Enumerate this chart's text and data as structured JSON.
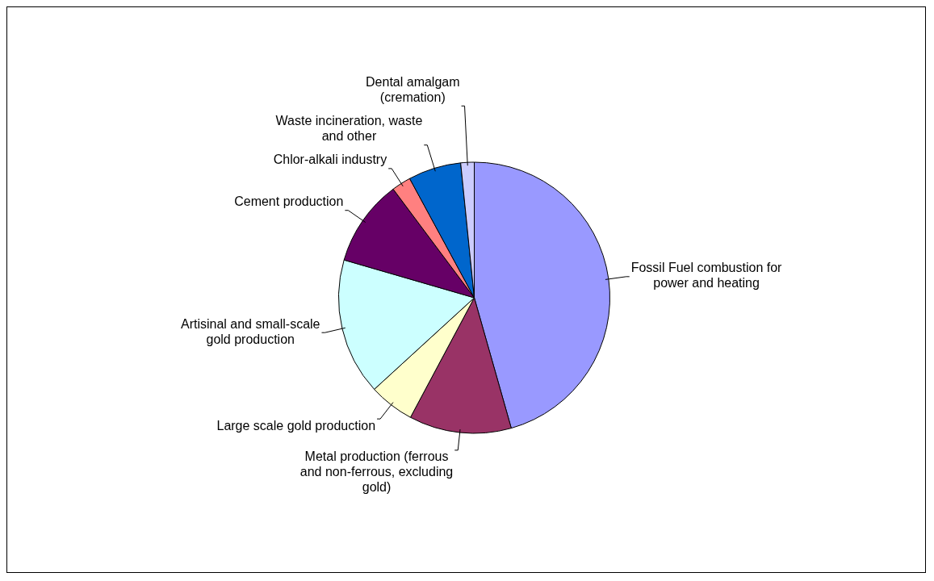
{
  "chart_data": {
    "type": "pie",
    "categories": [
      "Fossil Fuel combustion for power and heating",
      "Metal production (ferrous and non-ferrous, excluding gold)",
      "Large scale gold production",
      "Artisinal and small-scale gold production",
      "Cement production",
      "Chlor-alkali industry",
      "Waste incineration, waste and other",
      "Dental amalgam (cremation)"
    ],
    "values": [
      45.6,
      12.2,
      5.4,
      16.3,
      10.3,
      2.3,
      6.3,
      1.6
    ],
    "colors": [
      "#9999ff",
      "#993366",
      "#ffffcc",
      "#ccffff",
      "#660066",
      "#ff8080",
      "#0066cc",
      "#ccccff"
    ],
    "legend": false
  }
}
